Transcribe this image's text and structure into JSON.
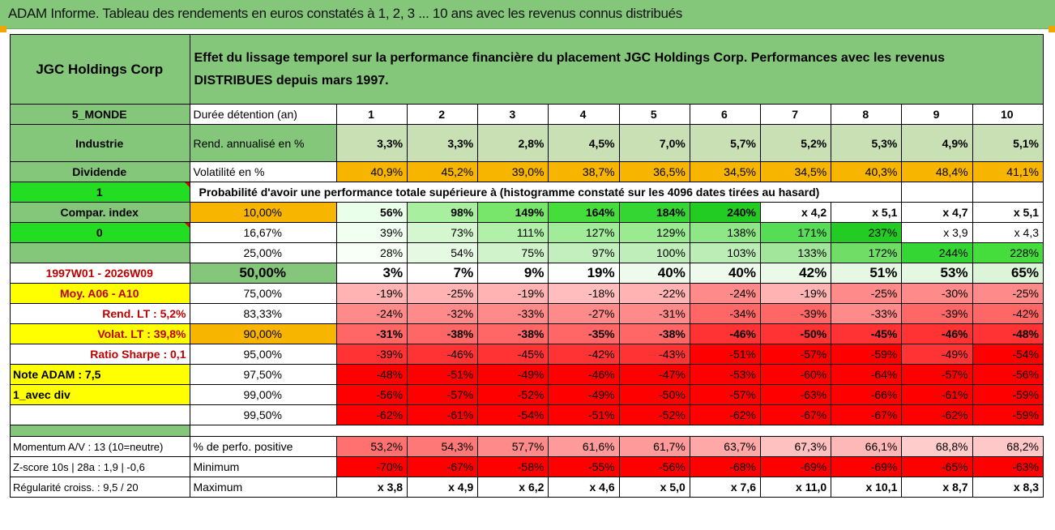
{
  "title": "ADAM Informe. Tableau des rendements en euros constatés à 1, 2, 3 ... 10 ans avec les revenus connus distribués",
  "company": "JGC Holdings Corp",
  "description_line1": "Effet du lissage temporel sur la performance financière du placement JGC Holdings Corp. Performances avec les revenus",
  "description_line2": "DISTRIBUES depuis mars 1997.",
  "side": {
    "zone": "5_MONDE",
    "sector": "Industrie",
    "dividend": "Dividende",
    "flag_value": "1",
    "compar_index": "Compar. index",
    "compar_value": "0",
    "period": "1997W01 - 2026W09",
    "moy": "Moy. A06 - A10",
    "rend_lt": "Rend. LT :   5,2%",
    "volat_lt": "Volat. LT :   39,8%",
    "sharpe": "Ratio Sharpe :   0,1",
    "note": "Note ADAM : 7,5",
    "avec_div": "1_avec div",
    "momentum": "Momentum A/V : 13 (10=neutre)",
    "zscore": "Z-score 10s | 28a : 1,9 | -0,6",
    "regularite": "Régularité croiss. : 9,5 / 20"
  },
  "row_labels": {
    "duree": "Durée détention (an)",
    "rend": "Rend. annualisé en %",
    "vol": "Volatilité en %",
    "prob": "Probabilité d'avoir une performance totale supérieure à (histogramme constaté sur les 4096 dates tirées au hasard)",
    "perf_pos": "% de perfo. positive",
    "minimum": "Minimum",
    "maximum": "Maximum"
  },
  "years": [
    "1",
    "2",
    "3",
    "4",
    "5",
    "6",
    "7",
    "8",
    "9",
    "10"
  ],
  "rend": [
    "3,3%",
    "3,3%",
    "2,8%",
    "4,5%",
    "7,0%",
    "5,7%",
    "5,2%",
    "5,3%",
    "4,9%",
    "5,1%"
  ],
  "vol": [
    "40,9%",
    "45,2%",
    "39,0%",
    "38,7%",
    "36,5%",
    "34,5%",
    "34,5%",
    "40,3%",
    "48,4%",
    "41,1%"
  ],
  "prob_rows": [
    {
      "label": "10,00%",
      "values": [
        "56%",
        "98%",
        "149%",
        "164%",
        "184%",
        "240%",
        "x 4,2",
        "x 5,1",
        "x 4,7",
        "x 5,1"
      ]
    },
    {
      "label": "16,67%",
      "values": [
        "39%",
        "73%",
        "111%",
        "127%",
        "129%",
        "138%",
        "171%",
        "237%",
        "x 3,9",
        "x 4,3"
      ]
    },
    {
      "label": "25,00%",
      "values": [
        "28%",
        "54%",
        "75%",
        "97%",
        "100%",
        "103%",
        "133%",
        "172%",
        "244%",
        "228%"
      ]
    },
    {
      "label": "50,00%",
      "values": [
        "3%",
        "7%",
        "9%",
        "19%",
        "40%",
        "40%",
        "42%",
        "51%",
        "53%",
        "65%"
      ]
    },
    {
      "label": "75,00%",
      "values": [
        "-19%",
        "-25%",
        "-19%",
        "-18%",
        "-22%",
        "-24%",
        "-19%",
        "-25%",
        "-30%",
        "-25%"
      ]
    },
    {
      "label": "83,33%",
      "values": [
        "-24%",
        "-32%",
        "-33%",
        "-27%",
        "-31%",
        "-34%",
        "-39%",
        "-33%",
        "-39%",
        "-42%"
      ]
    },
    {
      "label": "90,00%",
      "values": [
        "-31%",
        "-38%",
        "-38%",
        "-35%",
        "-38%",
        "-46%",
        "-50%",
        "-45%",
        "-46%",
        "-48%"
      ]
    },
    {
      "label": "95,00%",
      "values": [
        "-39%",
        "-46%",
        "-45%",
        "-42%",
        "-43%",
        "-51%",
        "-57%",
        "-59%",
        "-49%",
        "-54%"
      ]
    },
    {
      "label": "97,50%",
      "values": [
        "-48%",
        "-51%",
        "-49%",
        "-46%",
        "-47%",
        "-53%",
        "-60%",
        "-64%",
        "-57%",
        "-56%"
      ]
    },
    {
      "label": "99,00%",
      "values": [
        "-56%",
        "-57%",
        "-52%",
        "-49%",
        "-50%",
        "-57%",
        "-63%",
        "-66%",
        "-61%",
        "-59%"
      ]
    },
    {
      "label": "99,50%",
      "values": [
        "-62%",
        "-61%",
        "-54%",
        "-51%",
        "-52%",
        "-62%",
        "-67%",
        "-67%",
        "-62%",
        "-59%"
      ]
    }
  ],
  "perf_pos": [
    "53,2%",
    "54,3%",
    "57,7%",
    "61,6%",
    "61,7%",
    "63,7%",
    "67,3%",
    "66,1%",
    "68,8%",
    "68,2%"
  ],
  "minimum": [
    "-70%",
    "-67%",
    "-58%",
    "-55%",
    "-56%",
    "-68%",
    "-69%",
    "-69%",
    "-65%",
    "-63%"
  ],
  "maximum": [
    "x 3,8",
    "x 4,9",
    "x 6,2",
    "x 4,6",
    "x 5,0",
    "x 7,6",
    "x 11,0",
    "x 10,1",
    "x 8,7",
    "x 8,3"
  ],
  "colors": {
    "header_green": "#84c77a",
    "orange": "#f8b500",
    "yellow": "#ffff00",
    "bright_green": "#22dd22",
    "rend_bg": "#c8e0b4",
    "red_dark": "#ff0000",
    "red_text": "#c00000"
  }
}
